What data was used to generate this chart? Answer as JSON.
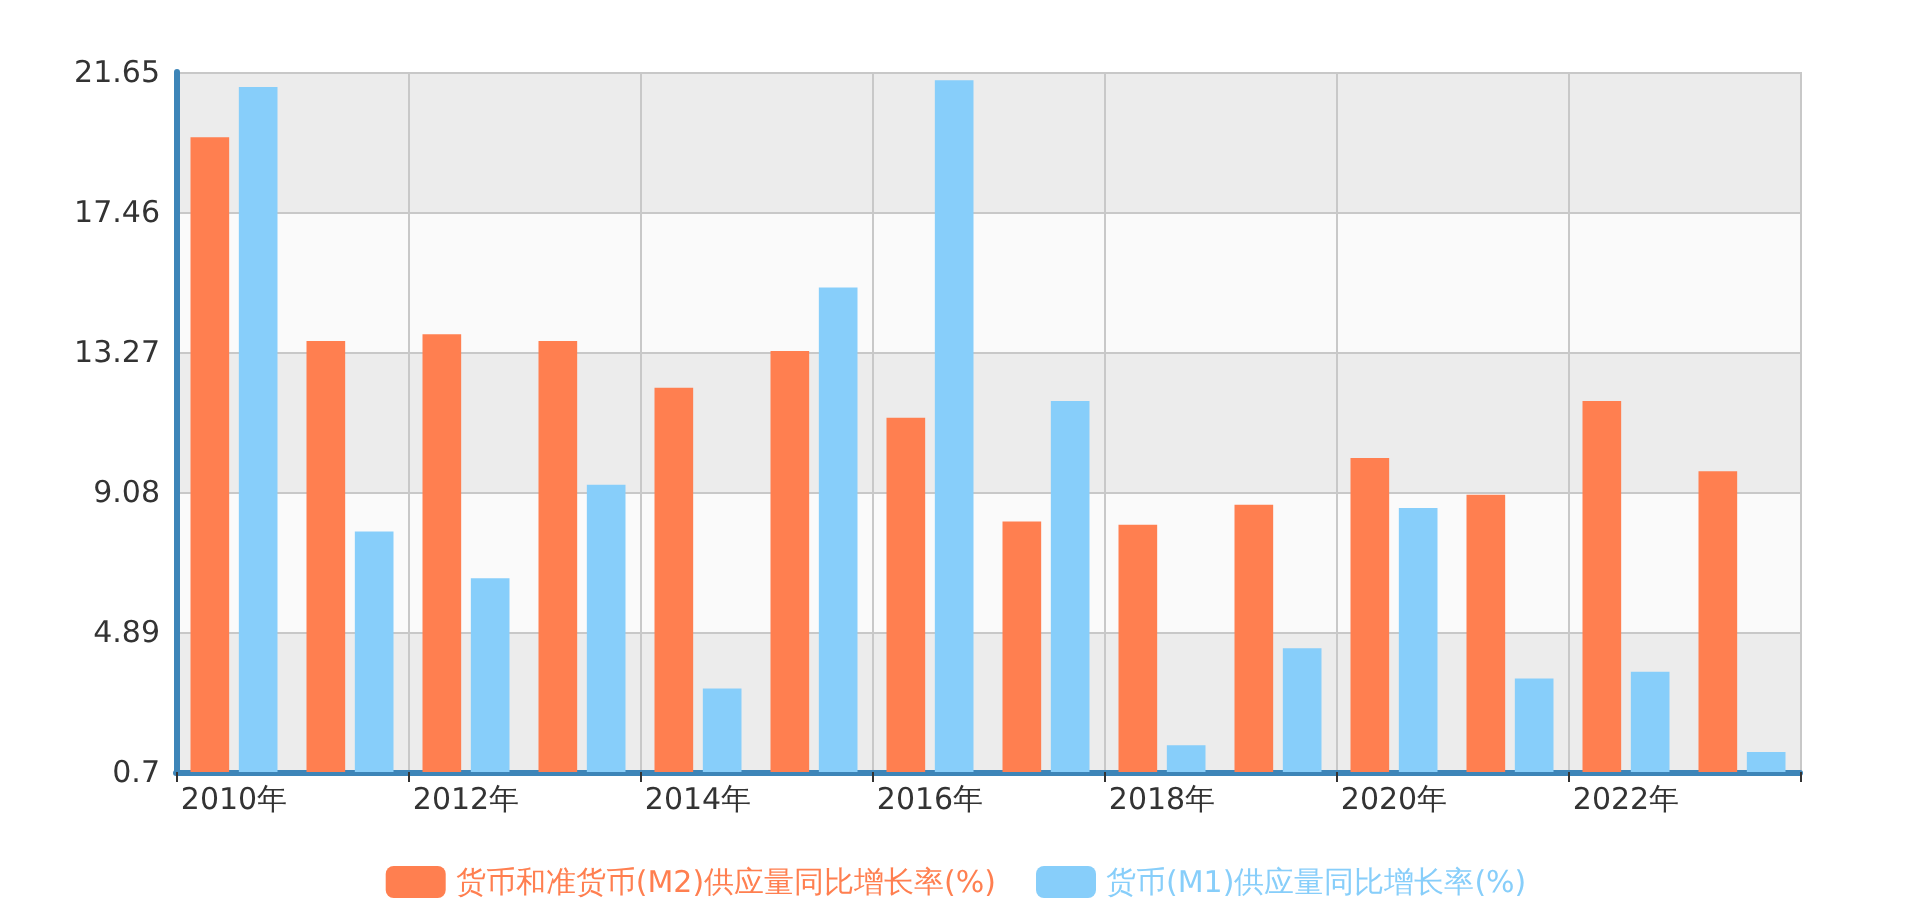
{
  "chart_data": {
    "type": "bar",
    "categories": [
      "2010年",
      null,
      "2012年",
      null,
      "2014年",
      null,
      "2016年",
      null,
      "2018年",
      null,
      "2020年",
      null,
      "2022年",
      null
    ],
    "series": [
      {
        "name": "货币和准货币(M2)供应量同比增长率(%)",
        "color": "#ff7f50",
        "values": [
          19.7,
          13.6,
          13.8,
          13.6,
          12.2,
          13.3,
          11.3,
          8.2,
          8.1,
          8.7,
          10.1,
          9.0,
          11.8,
          9.7
        ]
      },
      {
        "name": "货币(M1)供应量同比增长率(%)",
        "color": "#87cefa",
        "values": [
          21.2,
          7.9,
          6.5,
          9.3,
          3.2,
          15.2,
          21.4,
          11.8,
          1.5,
          4.4,
          8.6,
          3.5,
          3.7,
          1.3
        ]
      }
    ],
    "ylim": [
      0.7,
      21.65
    ],
    "yticks": [
      0.7,
      4.89,
      9.08,
      13.27,
      17.46,
      21.65
    ],
    "grid": true,
    "legend": "bottom"
  }
}
